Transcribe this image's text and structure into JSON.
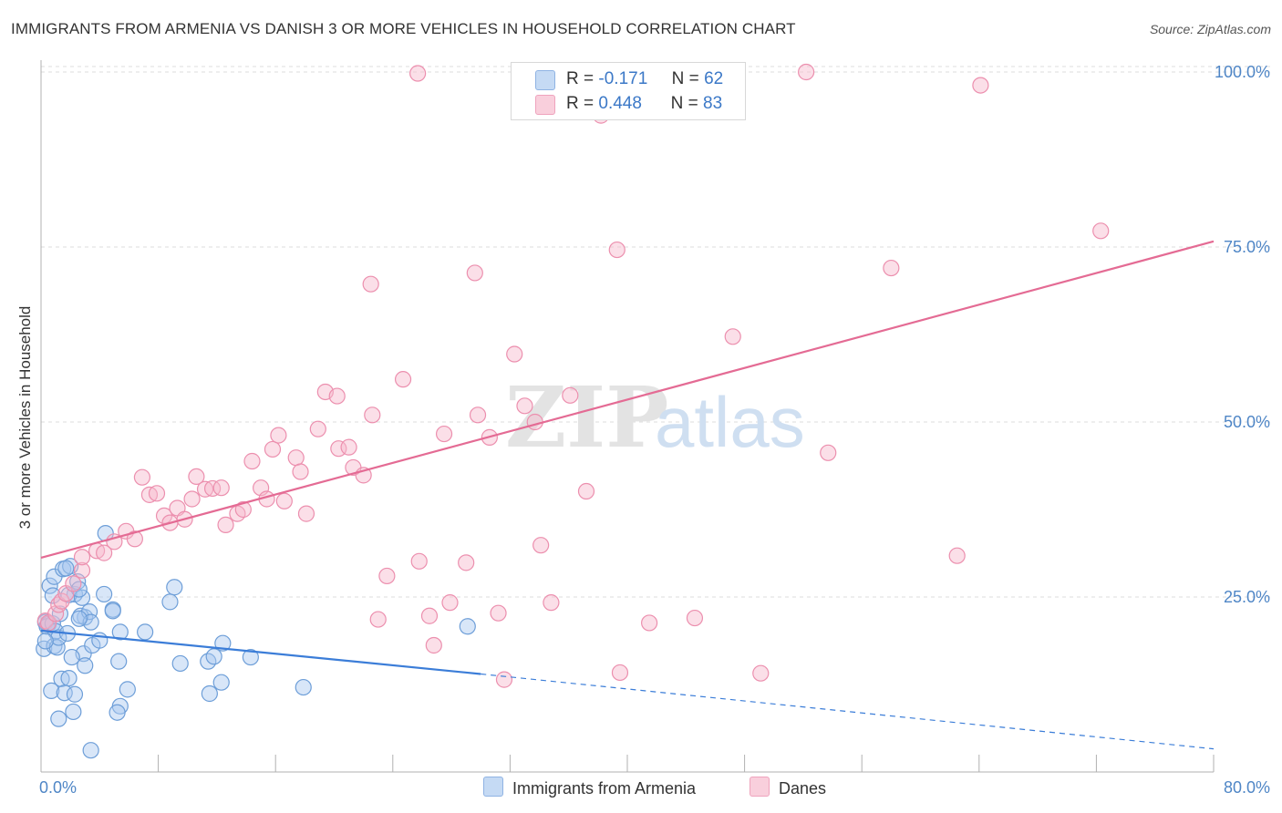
{
  "title": "IMMIGRANTS FROM ARMENIA VS DANISH 3 OR MORE VEHICLES IN HOUSEHOLD CORRELATION CHART",
  "source": "Source: ZipAtlas.com",
  "watermark": {
    "zip": "ZIP",
    "atlas": "atlas"
  },
  "legend_stats": [
    {
      "r_label": "R =",
      "r_value": "-0.171",
      "n_label": "N =",
      "n_value": "62"
    },
    {
      "r_label": "R =",
      "r_value": "0.448",
      "n_label": "N =",
      "n_value": "83"
    }
  ],
  "colors": {
    "armenia_fill": "#a9c8ef",
    "armenia_stroke": "#6d9ed8",
    "armenia_line": "#3b7dd8",
    "danes_fill": "#f6b9cc",
    "danes_stroke": "#ec8fae",
    "danes_line": "#e46b94",
    "axis_text": "#4f86c6",
    "grid": "#dddddd"
  },
  "chart_data": {
    "type": "scatter",
    "title": "IMMIGRANTS FROM ARMENIA VS DANISH 3 OR MORE VEHICLES IN HOUSEHOLD CORRELATION CHART",
    "xlabel": "",
    "ylabel": "3 or more Vehicles in Household",
    "xlim": [
      0,
      80
    ],
    "ylim": [
      0,
      103
    ],
    "x_tick_labels": [
      "0.0%",
      "80.0%"
    ],
    "y_ticks": [
      {
        "value": 25,
        "label": "25.0%"
      },
      {
        "value": 50,
        "label": "50.0%"
      },
      {
        "value": 75,
        "label": "75.0%"
      },
      {
        "value": 100,
        "label": "100.0%"
      }
    ],
    "grid": true,
    "legend_position": "bottom",
    "series": [
      {
        "name": "Immigrants from Armenia",
        "r": -0.171,
        "n": 62,
        "trend": {
          "x_start": 0,
          "y_start": 20.2,
          "x_end_solid": 30,
          "y_end_solid": 14.0,
          "x_end_dashed": 80,
          "y_end_dashed": 3.3
        },
        "points": [
          [
            0.3,
            21.4
          ],
          [
            0.5,
            21.1
          ],
          [
            0.4,
            20.8
          ],
          [
            0.8,
            21.2
          ],
          [
            0.2,
            17.6
          ],
          [
            0.9,
            18.0
          ],
          [
            1.1,
            17.8
          ],
          [
            1.0,
            20.1
          ],
          [
            1.2,
            19.2
          ],
          [
            0.6,
            26.6
          ],
          [
            0.9,
            27.9
          ],
          [
            1.5,
            29.0
          ],
          [
            2.0,
            29.4
          ],
          [
            2.3,
            25.4
          ],
          [
            2.5,
            27.2
          ],
          [
            1.9,
            25.3
          ],
          [
            2.8,
            24.9
          ],
          [
            3.0,
            22.1
          ],
          [
            2.7,
            22.3
          ],
          [
            3.3,
            22.9
          ],
          [
            3.4,
            21.4
          ],
          [
            1.7,
            29.1
          ],
          [
            2.6,
            26.1
          ],
          [
            1.4,
            13.3
          ],
          [
            1.9,
            13.4
          ],
          [
            0.7,
            11.6
          ],
          [
            1.6,
            11.3
          ],
          [
            2.3,
            11.1
          ],
          [
            2.2,
            8.6
          ],
          [
            1.2,
            7.6
          ],
          [
            2.9,
            16.9
          ],
          [
            3.0,
            15.2
          ],
          [
            3.5,
            18.1
          ],
          [
            4.0,
            18.8
          ],
          [
            4.3,
            25.4
          ],
          [
            4.9,
            23.2
          ],
          [
            4.4,
            34.1
          ],
          [
            5.4,
            20.0
          ],
          [
            4.9,
            23.0
          ],
          [
            5.3,
            15.8
          ],
          [
            5.9,
            11.8
          ],
          [
            5.4,
            9.4
          ],
          [
            5.2,
            8.5
          ],
          [
            3.4,
            3.1
          ],
          [
            7.1,
            20.0
          ],
          [
            8.8,
            24.3
          ],
          [
            9.1,
            26.4
          ],
          [
            9.5,
            15.5
          ],
          [
            11.4,
            15.8
          ],
          [
            11.8,
            16.5
          ],
          [
            12.4,
            18.4
          ],
          [
            12.3,
            12.8
          ],
          [
            11.5,
            11.2
          ],
          [
            14.3,
            16.4
          ],
          [
            17.9,
            12.1
          ],
          [
            29.1,
            20.8
          ],
          [
            0.3,
            18.7
          ],
          [
            1.8,
            19.8
          ],
          [
            2.6,
            21.9
          ],
          [
            0.8,
            25.2
          ],
          [
            2.1,
            16.4
          ],
          [
            1.3,
            22.6
          ]
        ]
      },
      {
        "name": "Danes",
        "r": 0.448,
        "n": 83,
        "trend": {
          "x_start": 0,
          "y_start": 30.6,
          "x_end": 80,
          "y_end": 75.8
        },
        "points": [
          [
            0.3,
            21.6
          ],
          [
            0.5,
            21.3
          ],
          [
            1.0,
            22.6
          ],
          [
            1.2,
            23.9
          ],
          [
            1.4,
            24.4
          ],
          [
            1.7,
            25.5
          ],
          [
            2.2,
            26.9
          ],
          [
            2.8,
            28.8
          ],
          [
            2.8,
            30.7
          ],
          [
            3.8,
            31.6
          ],
          [
            4.3,
            31.3
          ],
          [
            5.0,
            32.9
          ],
          [
            5.8,
            34.4
          ],
          [
            6.4,
            33.3
          ],
          [
            6.9,
            42.1
          ],
          [
            7.4,
            39.6
          ],
          [
            7.9,
            39.8
          ],
          [
            8.4,
            36.6
          ],
          [
            8.8,
            35.6
          ],
          [
            9.3,
            37.7
          ],
          [
            9.8,
            36.1
          ],
          [
            10.3,
            39.0
          ],
          [
            10.6,
            42.2
          ],
          [
            11.2,
            40.4
          ],
          [
            11.7,
            40.5
          ],
          [
            12.3,
            40.6
          ],
          [
            12.6,
            35.3
          ],
          [
            13.4,
            36.9
          ],
          [
            13.8,
            37.5
          ],
          [
            14.4,
            44.4
          ],
          [
            15.0,
            40.6
          ],
          [
            15.4,
            39.0
          ],
          [
            15.8,
            46.1
          ],
          [
            16.2,
            48.1
          ],
          [
            16.6,
            38.7
          ],
          [
            17.4,
            44.9
          ],
          [
            17.7,
            42.9
          ],
          [
            18.1,
            36.9
          ],
          [
            18.9,
            49.0
          ],
          [
            19.4,
            54.3
          ],
          [
            20.2,
            53.7
          ],
          [
            20.3,
            46.2
          ],
          [
            21.0,
            46.4
          ],
          [
            21.3,
            43.5
          ],
          [
            22.0,
            42.4
          ],
          [
            22.6,
            51.0
          ],
          [
            22.5,
            69.7
          ],
          [
            23.6,
            28.0
          ],
          [
            24.7,
            56.1
          ],
          [
            25.7,
            99.8
          ],
          [
            25.8,
            30.1
          ],
          [
            26.5,
            22.3
          ],
          [
            26.8,
            18.1
          ],
          [
            27.5,
            48.3
          ],
          [
            27.9,
            24.2
          ],
          [
            29.0,
            29.9
          ],
          [
            29.6,
            71.3
          ],
          [
            29.8,
            51.0
          ],
          [
            30.6,
            47.8
          ],
          [
            31.2,
            22.7
          ],
          [
            31.6,
            13.2
          ],
          [
            32.3,
            59.7
          ],
          [
            33.0,
            52.3
          ],
          [
            33.7,
            50.0
          ],
          [
            34.1,
            32.4
          ],
          [
            34.8,
            24.2
          ],
          [
            36.1,
            53.8
          ],
          [
            37.2,
            40.1
          ],
          [
            38.2,
            93.8
          ],
          [
            39.3,
            74.6
          ],
          [
            39.5,
            14.2
          ],
          [
            41.5,
            21.3
          ],
          [
            44.3,
            100.0
          ],
          [
            44.6,
            22.0
          ],
          [
            47.2,
            62.2
          ],
          [
            49.1,
            14.1
          ],
          [
            52.2,
            100.0
          ],
          [
            53.7,
            45.6
          ],
          [
            58.0,
            72.0
          ],
          [
            62.5,
            30.9
          ],
          [
            64.1,
            98.1
          ],
          [
            72.3,
            77.3
          ],
          [
            23.0,
            21.8
          ]
        ]
      }
    ]
  },
  "legend_series": [
    "Immigrants from Armenia",
    "Danes"
  ]
}
